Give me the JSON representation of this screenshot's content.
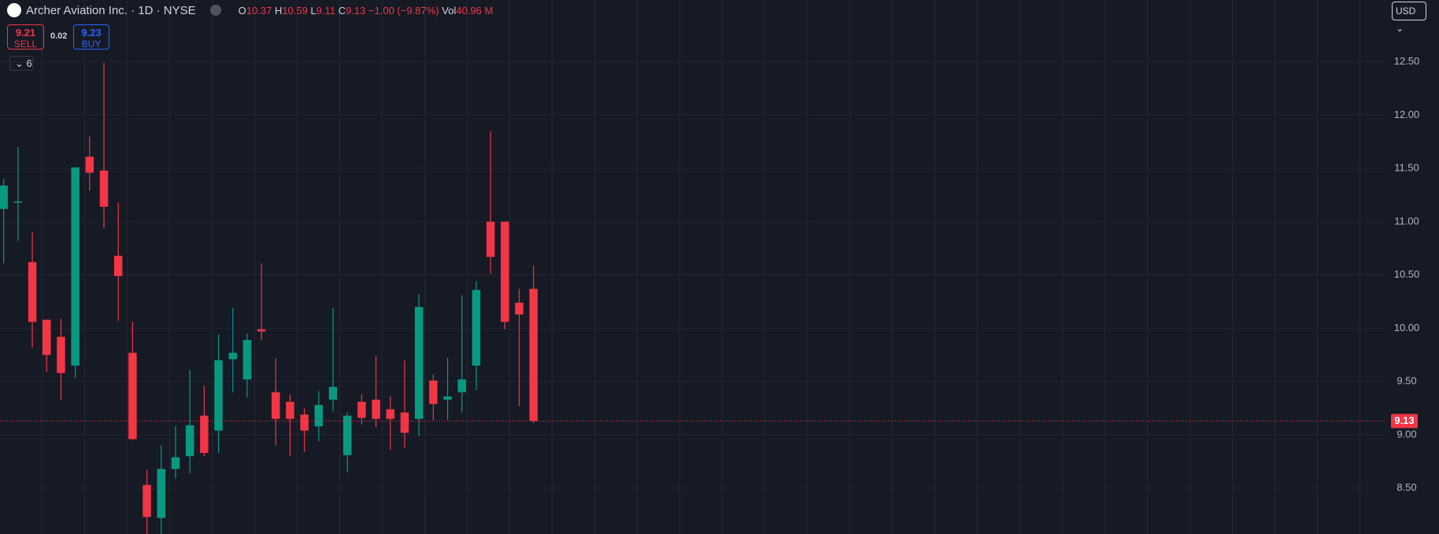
{
  "chart_data": {
    "type": "candlestick",
    "title": "Archer Aviation Inc. · 1D · NYSE",
    "ohlc_labels": [
      "O",
      "H",
      "L",
      "C"
    ],
    "change": "−1.00 (−9.87%)",
    "volume_label": "Vol",
    "volume": "40.96 M",
    "sell": 9.21,
    "sell_label": "SELL",
    "spread": 0.02,
    "buy": 9.23,
    "buy_label": "BUY",
    "indicator_count": 6,
    "currency": "USD",
    "up_color": "#089981",
    "down_color": "#f23645",
    "open": [
      11.12,
      11.18,
      10.62,
      10.08,
      9.92,
      9.65,
      11.61,
      11.48,
      10.68,
      9.77,
      8.53,
      8.22,
      8.68,
      8.8,
      9.18,
      9.04,
      9.71,
      9.52,
      9.99,
      9.4,
      9.31,
      9.19,
      9.08,
      9.33,
      8.81,
      9.31,
      9.33,
      9.24,
      9.21,
      9.15,
      9.51,
      9.33,
      9.4,
      9.65,
      11.0,
      11.0,
      10.24,
      10.37
    ],
    "high": [
      11.4,
      11.7,
      10.9,
      10.08,
      10.09,
      11.51,
      11.8,
      12.49,
      11.18,
      10.06,
      8.67,
      8.9,
      9.08,
      9.61,
      9.46,
      9.94,
      10.19,
      9.95,
      10.61,
      9.72,
      9.38,
      9.25,
      9.41,
      10.19,
      9.21,
      9.38,
      9.74,
      9.36,
      9.7,
      10.32,
      9.57,
      9.72,
      10.31,
      10.44,
      11.85,
      11.0,
      10.37,
      10.59
    ],
    "low": [
      10.61,
      10.82,
      9.82,
      9.59,
      9.33,
      9.53,
      11.29,
      10.94,
      10.07,
      8.95,
      8.05,
      8.07,
      8.59,
      8.64,
      8.8,
      8.83,
      9.4,
      9.35,
      9.89,
      8.9,
      8.8,
      8.84,
      8.94,
      9.22,
      8.65,
      9.1,
      9.07,
      8.86,
      8.88,
      8.99,
      9.14,
      9.14,
      9.21,
      9.42,
      10.51,
      9.99,
      9.27,
      9.11
    ],
    "close": [
      11.34,
      11.19,
      10.06,
      9.75,
      9.58,
      11.51,
      11.46,
      11.14,
      10.49,
      8.96,
      8.23,
      8.68,
      8.79,
      9.09,
      8.83,
      9.7,
      9.77,
      9.89,
      9.97,
      9.15,
      9.15,
      9.04,
      9.28,
      9.45,
      9.18,
      9.16,
      9.15,
      9.15,
      9.02,
      10.2,
      9.29,
      9.36,
      9.52,
      10.36,
      10.67,
      10.06,
      10.13,
      9.13
    ],
    "ylim": [
      8.07,
      13.08
    ],
    "yticks": [
      {
        "value": 8.5,
        "label": "8.50"
      },
      {
        "value": 9,
        "label": "9.00"
      },
      {
        "value": 9.5,
        "label": "9.50"
      },
      {
        "value": 10,
        "label": "10.00"
      },
      {
        "value": 10.5,
        "label": "10.50"
      },
      {
        "value": 11,
        "label": "11.00"
      },
      {
        "value": 11.5,
        "label": "11.50"
      },
      {
        "value": 12,
        "label": "12.00"
      },
      {
        "value": 12.5,
        "label": "12.50"
      }
    ],
    "grid": true
  }
}
